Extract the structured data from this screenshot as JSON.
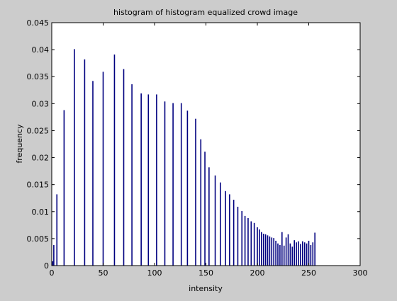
{
  "chart_data": {
    "type": "bar",
    "title": "histogram of histogram equalized crowd image",
    "xlabel": "intensity",
    "ylabel": "frequency",
    "xlim": [
      0,
      300
    ],
    "ylim": [
      0,
      0.045
    ],
    "xticks": [
      "0",
      "50",
      "100",
      "150",
      "200",
      "250",
      "300"
    ],
    "yticks": [
      "0",
      "0.005",
      "0.01",
      "0.015",
      "0.02",
      "0.025",
      "0.03",
      "0.035",
      "0.04",
      "0.045"
    ],
    "bar_color": "#00007f",
    "grid": false,
    "x": [
      1,
      2,
      5,
      12,
      22,
      32,
      40,
      50,
      61,
      70,
      78,
      87,
      94,
      102,
      110,
      118,
      126,
      132,
      140,
      145,
      149,
      153,
      159,
      164,
      169,
      173,
      177,
      181,
      185,
      188,
      191,
      194,
      197,
      200,
      202,
      204,
      206,
      208,
      210,
      212,
      214,
      216,
      218,
      220,
      222,
      224,
      226,
      228,
      230,
      232,
      234,
      236,
      238,
      240,
      242,
      244,
      246,
      248,
      250,
      252,
      254,
      256
    ],
    "values": [
      0.0008,
      0.0038,
      0.0132,
      0.0288,
      0.0401,
      0.0382,
      0.0342,
      0.0359,
      0.0391,
      0.0364,
      0.0336,
      0.0319,
      0.0317,
      0.0317,
      0.0304,
      0.0301,
      0.0301,
      0.0287,
      0.0272,
      0.0234,
      0.0211,
      0.0182,
      0.0167,
      0.0154,
      0.0138,
      0.0132,
      0.0122,
      0.0109,
      0.0101,
      0.0092,
      0.0088,
      0.0082,
      0.0079,
      0.0071,
      0.0067,
      0.0062,
      0.0059,
      0.0058,
      0.0056,
      0.0054,
      0.0052,
      0.0051,
      0.0046,
      0.0041,
      0.0038,
      0.0062,
      0.0037,
      0.0052,
      0.0058,
      0.0041,
      0.0035,
      0.0047,
      0.0043,
      0.0045,
      0.004,
      0.0045,
      0.0043,
      0.0041,
      0.0046,
      0.0038,
      0.0043,
      0.0061
    ]
  }
}
